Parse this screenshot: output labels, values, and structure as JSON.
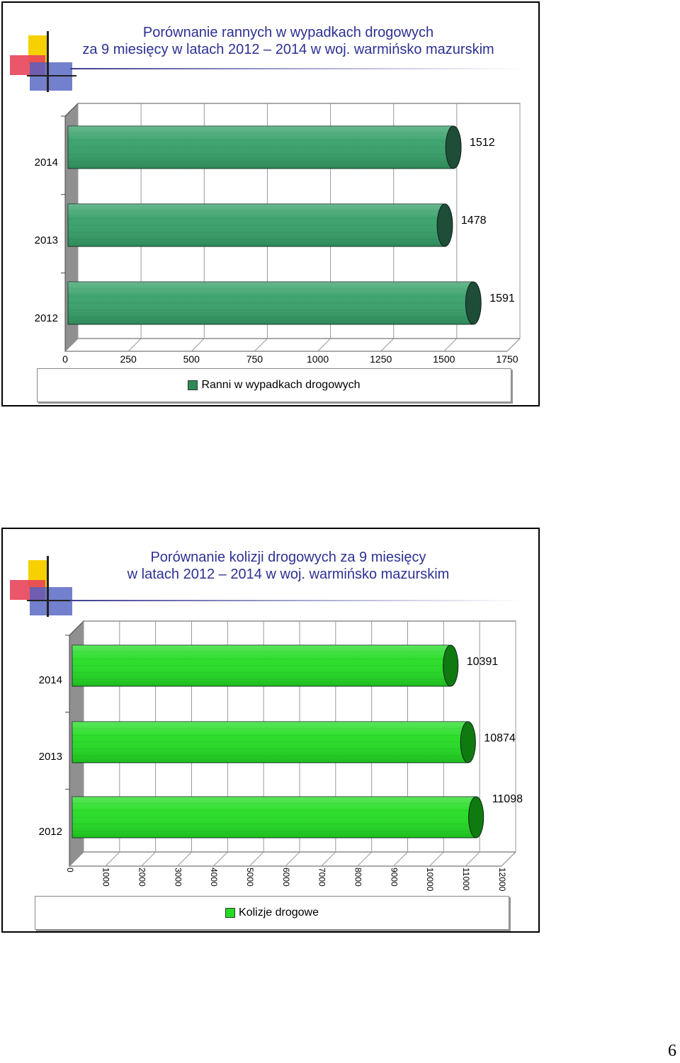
{
  "slides": [
    {
      "title_lines": [
        "Porównanie rannych w wypadkach drogowych",
        "za 9 miesięcy w latach 2012 – 2014 w woj. warmińsko mazurskim"
      ]
    },
    {
      "title_lines": [
        "Porównanie kolizji drogowych  za 9 miesięcy",
        "w latach 2012 – 2014 w woj. warmińsko mazurskim"
      ]
    }
  ],
  "chart_data": [
    {
      "type": "bar",
      "orientation": "horizontal",
      "categories": [
        "2014",
        "2013",
        "2012"
      ],
      "series": [
        {
          "name": "Ranni w wypadkach drogowych",
          "values": [
            1512,
            1478,
            1591
          ]
        }
      ],
      "data_labels": [
        "1512",
        "1478",
        "1591"
      ],
      "x_ticks": [
        "0",
        "250",
        "500",
        "750",
        "1000",
        "1250",
        "1500",
        "1750"
      ],
      "xlim": [
        0,
        1750
      ],
      "grid": true,
      "legend_position": "bottom",
      "colors": {
        "face": "#35a068",
        "end": "#1e4d38",
        "floor": "#909090"
      }
    },
    {
      "type": "bar",
      "orientation": "horizontal",
      "categories": [
        "2014",
        "2013",
        "2012"
      ],
      "series": [
        {
          "name": "Kolizje drogowe",
          "values": [
            10391,
            10874,
            11098
          ]
        }
      ],
      "data_labels": [
        "10391",
        "10874",
        "11098"
      ],
      "x_ticks": [
        "0",
        "1000",
        "2000",
        "3000",
        "4000",
        "5000",
        "6000",
        "7000",
        "8000",
        "9000",
        "10000",
        "11000",
        "12000"
      ],
      "xlim": [
        0,
        12000
      ],
      "grid": true,
      "legend_position": "bottom",
      "colors": {
        "face": "#22dd22",
        "end": "#0f7a0f",
        "floor": "#909090"
      }
    }
  ],
  "page": {
    "number": "6"
  }
}
